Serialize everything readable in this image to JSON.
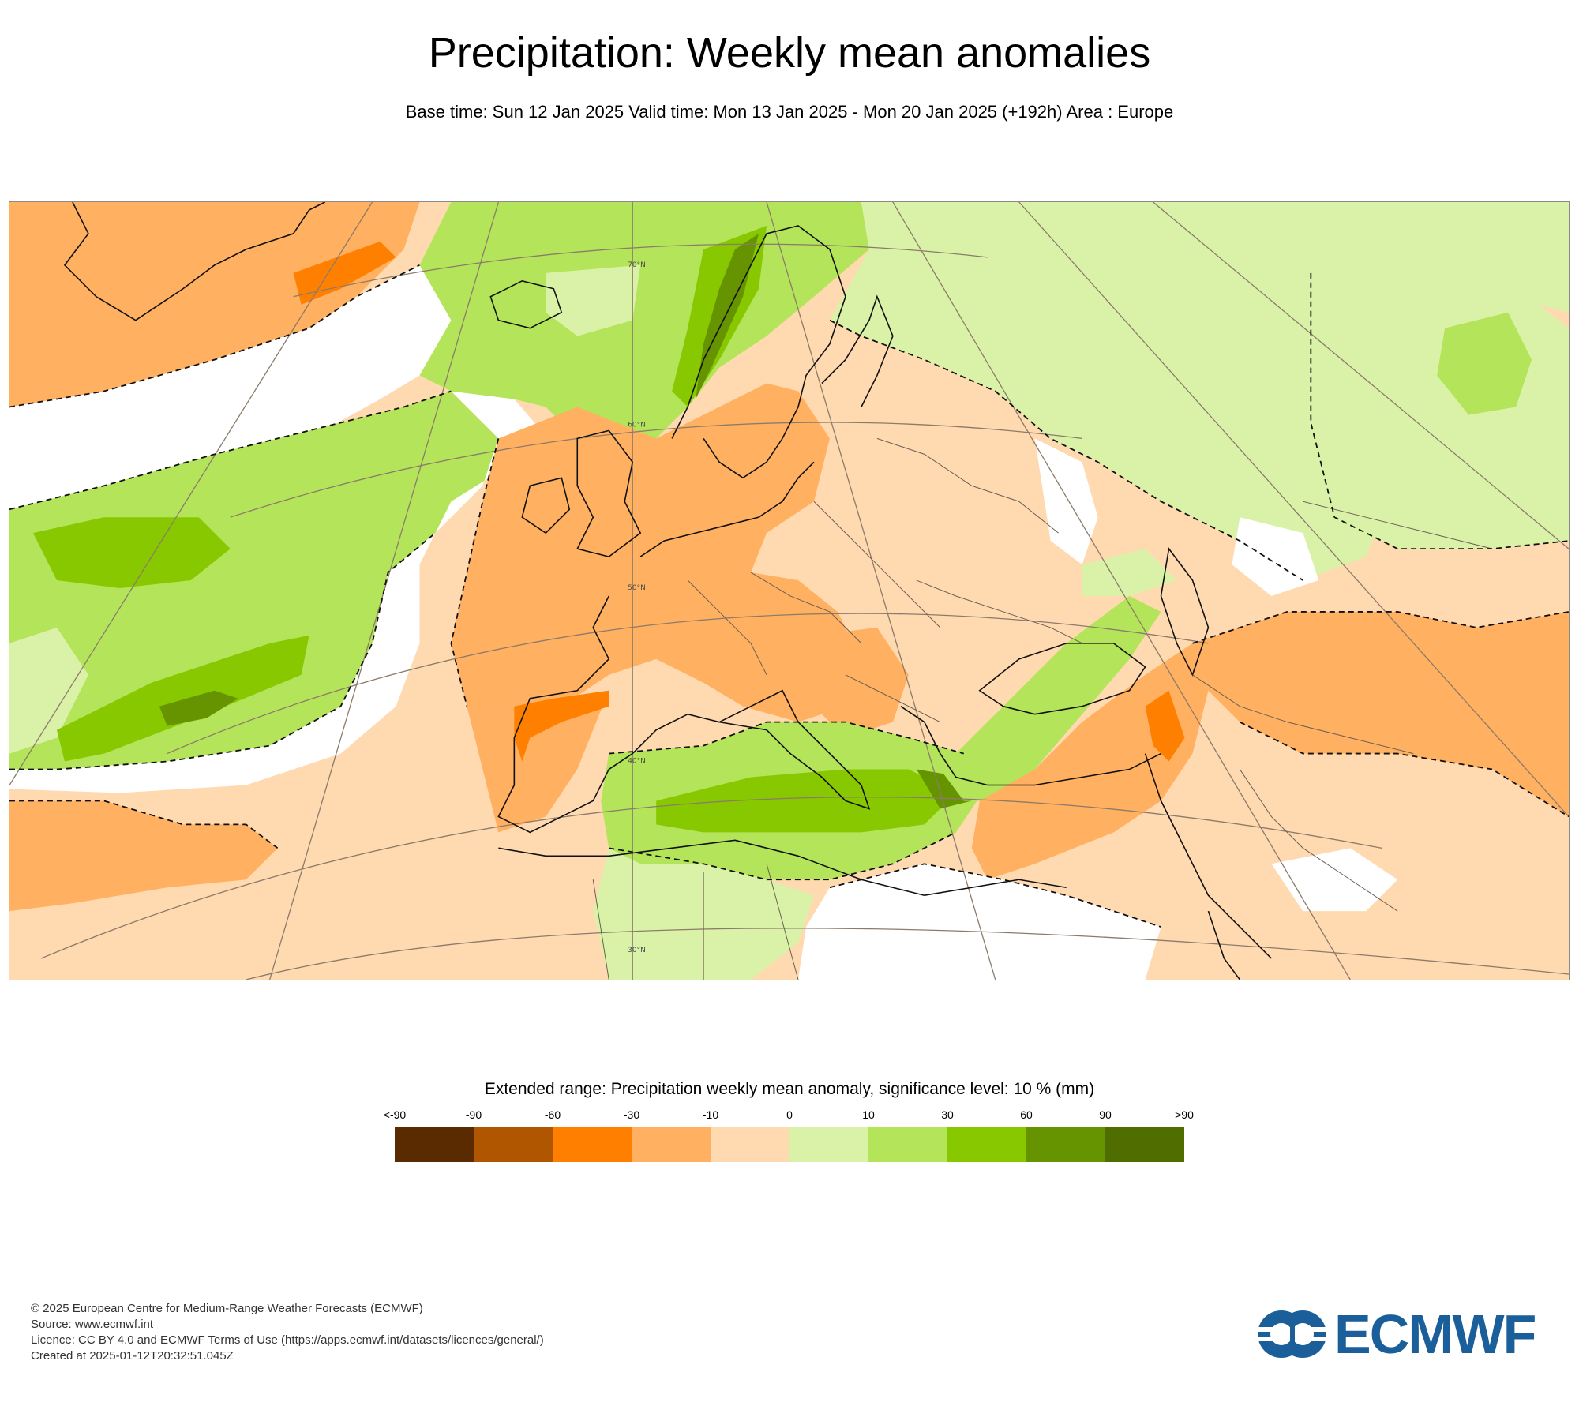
{
  "title": "Precipitation: Weekly mean anomalies",
  "subtitle": "Base time: Sun 12 Jan 2025 Valid time: Mon 13 Jan 2025 - Mon 20 Jan 2025 (+192h) Area : Europe",
  "map": {
    "area": "Europe",
    "grid_labels": [
      "70°N",
      "60°N",
      "50°N",
      "40°N",
      "30°N"
    ],
    "significance_line": "dashed"
  },
  "legend": {
    "title": "Extended range: Precipitation weekly mean anomaly, significance level: 10 % (mm)",
    "ticks": [
      "<-90",
      "-90",
      "-60",
      "-30",
      "-10",
      "0",
      "10",
      "30",
      "60",
      "90",
      ">90"
    ],
    "colors": [
      "#5a2a00",
      "#b05500",
      "#ff8000",
      "#ffb060",
      "#ffd9b0",
      "#daf2a8",
      "#b3e45a",
      "#88c800",
      "#669400",
      "#506e00"
    ]
  },
  "footer": {
    "line1": "© 2025 European Centre for Medium-Range Weather Forecasts (ECMWF)",
    "line2": "Source: www.ecmwf.int",
    "line3": "Licence: CC BY 4.0 and ECMWF Terms of Use (https://apps.ecmwf.int/datasets/licences/general/)",
    "line4": "Created at 2025-01-12T20:32:51.045Z"
  },
  "logo": {
    "text": "ECMWF",
    "color": "#1b5f9a"
  }
}
